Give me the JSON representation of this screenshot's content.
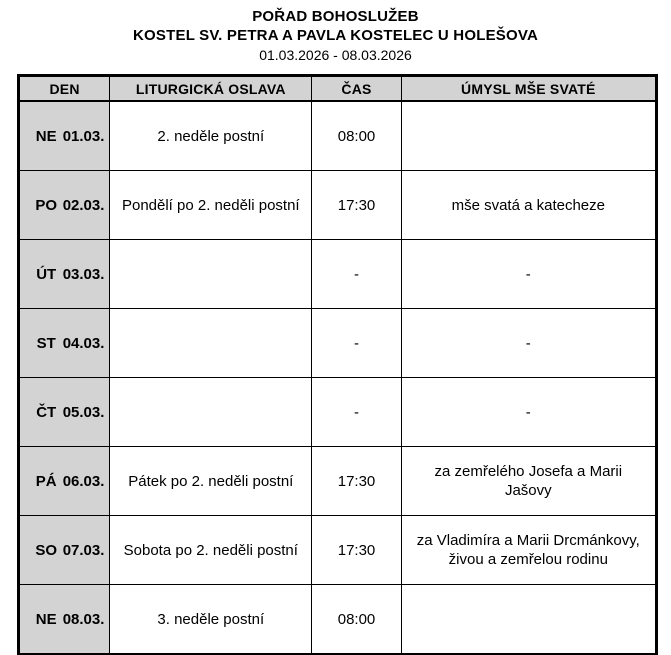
{
  "page": {
    "title_main": "POŘAD BOHOSLUŽEB",
    "title_sub": "KOSTEL SV. PETRA A PAVLA KOSTELEC U HOLEŠOVA",
    "date_range": "01.03.2026 - 08.03.2026"
  },
  "table": {
    "headers": [
      "DEN",
      "LITURGICKÁ OSLAVA",
      "ČAS",
      "ÚMYSL MŠE SVATÉ"
    ],
    "rows": [
      {
        "day": "NE",
        "date": "01.03.",
        "celebration": "2. neděle postní",
        "time": "08:00",
        "intention": ""
      },
      {
        "day": "PO",
        "date": "02.03.",
        "celebration": "Pondělí po 2. neděli postní",
        "time": "17:30",
        "intention": "mše svatá a katecheze"
      },
      {
        "day": "ÚT",
        "date": "03.03.",
        "celebration": "",
        "time": "-",
        "intention": "-"
      },
      {
        "day": "ST",
        "date": "04.03.",
        "celebration": "",
        "time": "-",
        "intention": "-"
      },
      {
        "day": "ČT",
        "date": "05.03.",
        "celebration": "",
        "time": "-",
        "intention": "-"
      },
      {
        "day": "PÁ",
        "date": "06.03.",
        "celebration": "Pátek po 2. neděli postní",
        "time": "17:30",
        "intention": "za zemřelého Josefa a Marii Jašovy"
      },
      {
        "day": "SO",
        "date": "07.03.",
        "celebration": "Sobota po 2. neděli postní",
        "time": "17:30",
        "intention": "za Vladimíra a Marii Drcmánkovy, živou a zemřelou rodinu"
      },
      {
        "day": "NE",
        "date": "08.03.",
        "celebration": "3. neděle postní",
        "time": "08:00",
        "intention": ""
      }
    ],
    "colors": {
      "header_bg": "#d3d3d3",
      "day_col_bg": "#d3d3d3",
      "border": "#000000",
      "text": "#000000",
      "background": "#ffffff"
    }
  }
}
